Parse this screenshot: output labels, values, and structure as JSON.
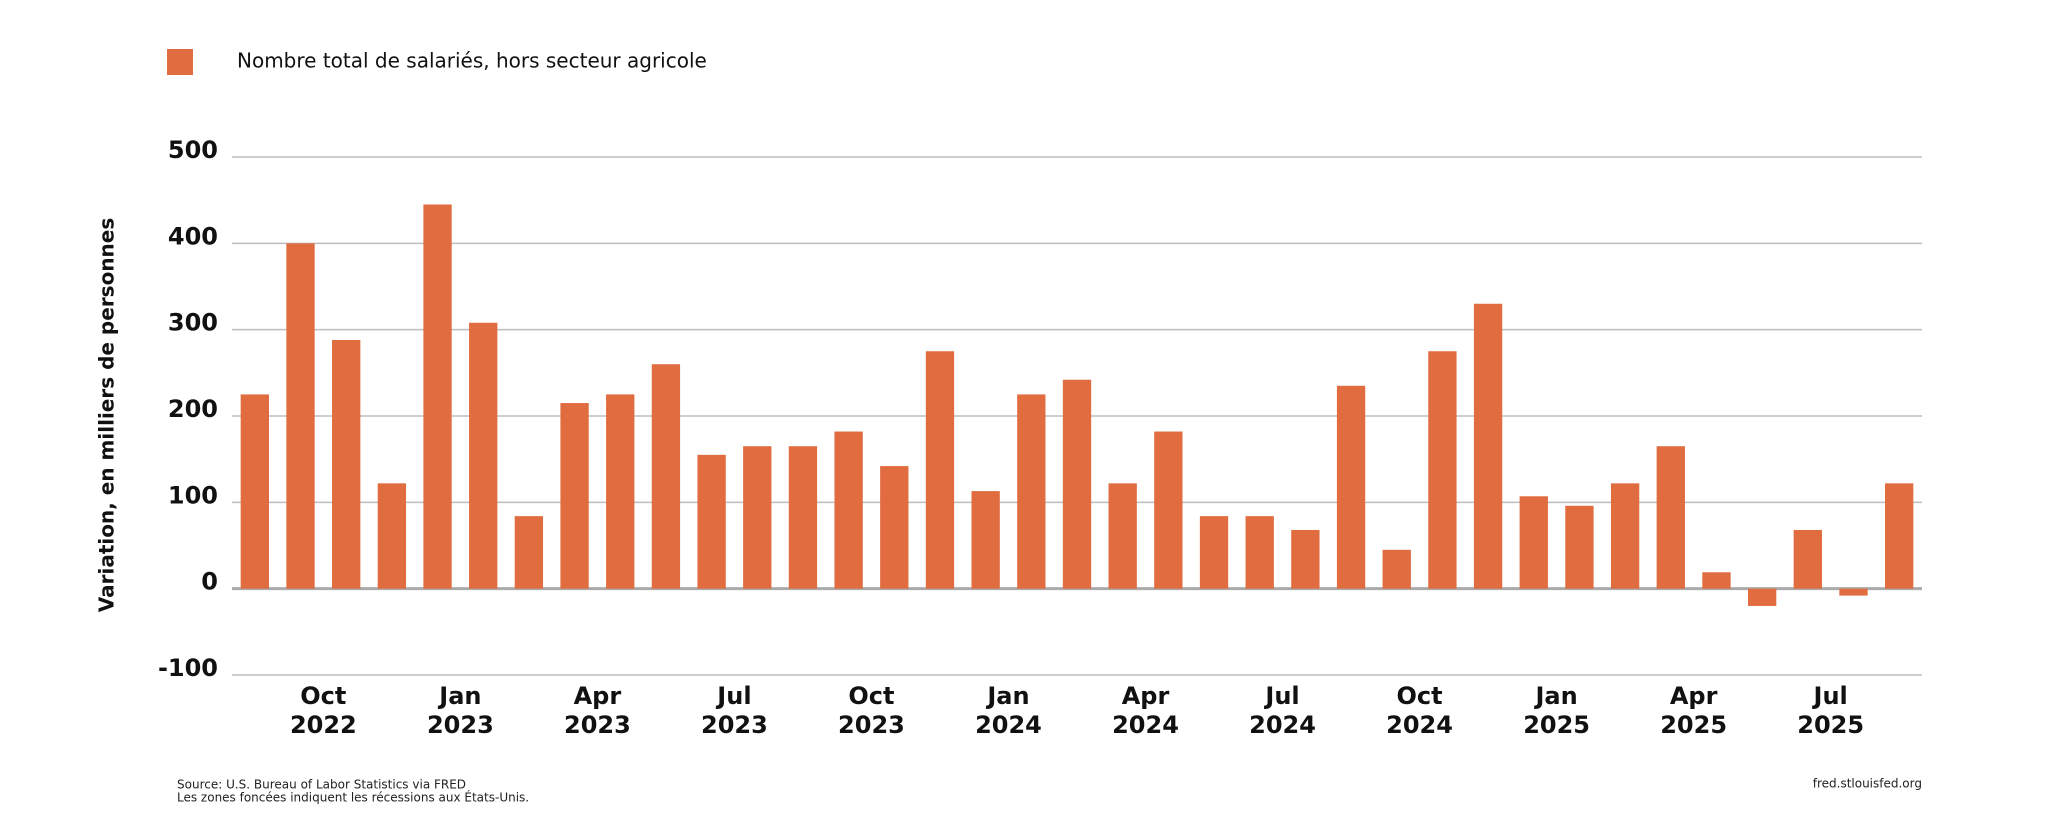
{
  "chart_data": {
    "type": "bar",
    "legend": "Nombre total de salariés, hors secteur agricole",
    "ylabel": "Variation, en milliers de personnes",
    "source": "Source: U.S. Bureau of Labor Statistics via FRED",
    "note": "Les zones foncées indiquent les récessions aux États-Unis.",
    "credit": "fred.stlouisfed.org",
    "categories": [
      null,
      null,
      "Oct 2022",
      null,
      null,
      "Jan 2023",
      null,
      null,
      "Apr 2023",
      null,
      null,
      "Jul 2023",
      null,
      null,
      "Oct 2023",
      null,
      null,
      "Jan 2024",
      null,
      null,
      "Apr 2024",
      null,
      null,
      "Jul 2024",
      null,
      null,
      "Oct 2024",
      null,
      null,
      "Jan 2025",
      null,
      null,
      "Apr 2025",
      null,
      null,
      "Jul 2025",
      null
    ],
    "values": [
      225,
      400,
      288,
      122,
      445,
      308,
      84,
      215,
      225,
      260,
      155,
      165,
      165,
      182,
      142,
      275,
      113,
      225,
      242,
      122,
      182,
      84,
      84,
      68,
      235,
      45,
      275,
      330,
      107,
      96,
      122,
      165,
      19,
      -20,
      68,
      -8,
      122
    ],
    "color": "#e06c3f",
    "ylim": [
      -100,
      500
    ],
    "yticks": [
      -100,
      0,
      100,
      200,
      300,
      400,
      500
    ],
    "grid": true
  }
}
